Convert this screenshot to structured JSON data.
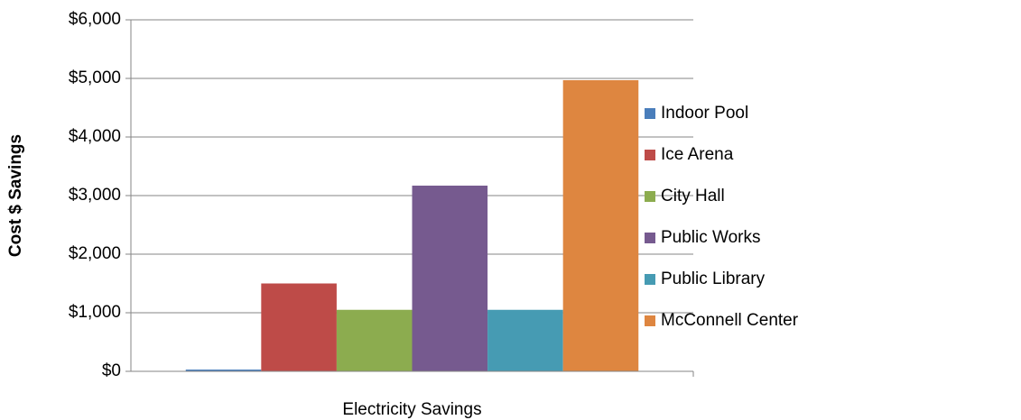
{
  "chart_data": {
    "type": "bar",
    "y_label": "Cost $ Savings",
    "categories": [
      "Electricity Savings"
    ],
    "series": [
      {
        "name": "Indoor Pool",
        "color": "#4a7ebb",
        "values": [
          30
        ]
      },
      {
        "name": "Ice Arena",
        "color": "#be4b48",
        "values": [
          1500
        ]
      },
      {
        "name": "City Hall",
        "color": "#8cac4f",
        "values": [
          1050
        ]
      },
      {
        "name": "Public Works",
        "color": "#765a8f",
        "values": [
          3170
        ]
      },
      {
        "name": "Public Library",
        "color": "#469bb3",
        "values": [
          1050
        ]
      },
      {
        "name": "McConnell Center",
        "color": "#de8640",
        "values": [
          4970
        ]
      }
    ],
    "ylim": [
      0,
      6000
    ],
    "yticks": [
      {
        "value": 0,
        "label": "$0"
      },
      {
        "value": 1000,
        "label": "$1,000"
      },
      {
        "value": 2000,
        "label": "$2,000"
      },
      {
        "value": 3000,
        "label": "$3,000"
      },
      {
        "value": 4000,
        "label": "$4,000"
      },
      {
        "value": 5000,
        "label": "$5,000"
      },
      {
        "value": 6000,
        "label": "$6,000"
      }
    ],
    "grid": true,
    "legend": "right"
  }
}
